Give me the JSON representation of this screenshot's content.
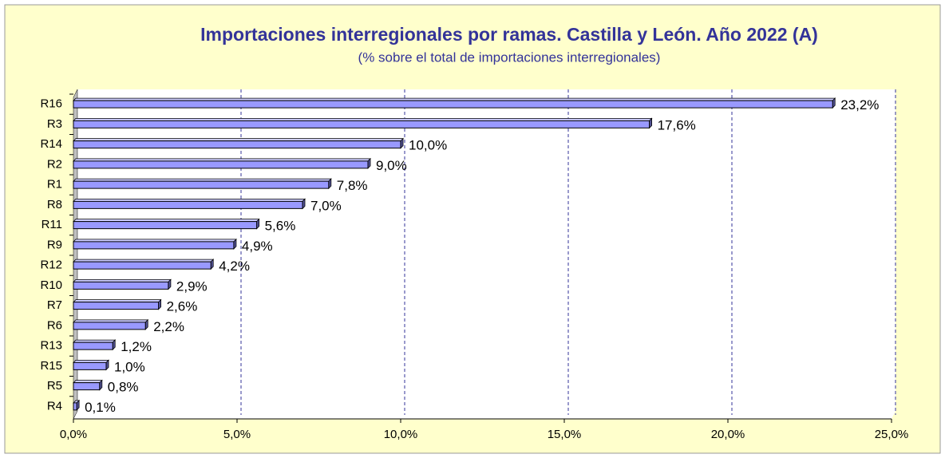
{
  "chart_data": {
    "type": "bar",
    "orientation": "horizontal",
    "title": "Importaciones interregionales por ramas. Castilla y León. Año 2022 (A)",
    "subtitle": "(% sobre el total de importaciones interregionales)",
    "categories": [
      "R16",
      "R3",
      "R14",
      "R2",
      "R1",
      "R8",
      "R11",
      "R9",
      "R12",
      "R10",
      "R7",
      "R6",
      "R13",
      "R15",
      "R5",
      "R4"
    ],
    "values": [
      23.2,
      17.6,
      10.0,
      9.0,
      7.8,
      7.0,
      5.6,
      4.9,
      4.2,
      2.9,
      2.6,
      2.2,
      1.2,
      1.0,
      0.8,
      0.1
    ],
    "value_labels": [
      "23,2%",
      "17,6%",
      "10,0%",
      "9,0%",
      "7,8%",
      "7,0%",
      "5,6%",
      "4,9%",
      "4,2%",
      "2,9%",
      "2,6%",
      "2,2%",
      "1,2%",
      "1,0%",
      "0,8%",
      "0,1%"
    ],
    "color": "#9999ff",
    "xlim": [
      0,
      25
    ],
    "xticks": [
      {
        "value": 0,
        "label": "0,0%"
      },
      {
        "value": 5,
        "label": "5,0%"
      },
      {
        "value": 10,
        "label": "10,0%"
      },
      {
        "value": 15,
        "label": "15,0%"
      },
      {
        "value": 20,
        "label": "20,0%"
      },
      {
        "value": 25,
        "label": "25,0%"
      }
    ],
    "grid": true
  }
}
